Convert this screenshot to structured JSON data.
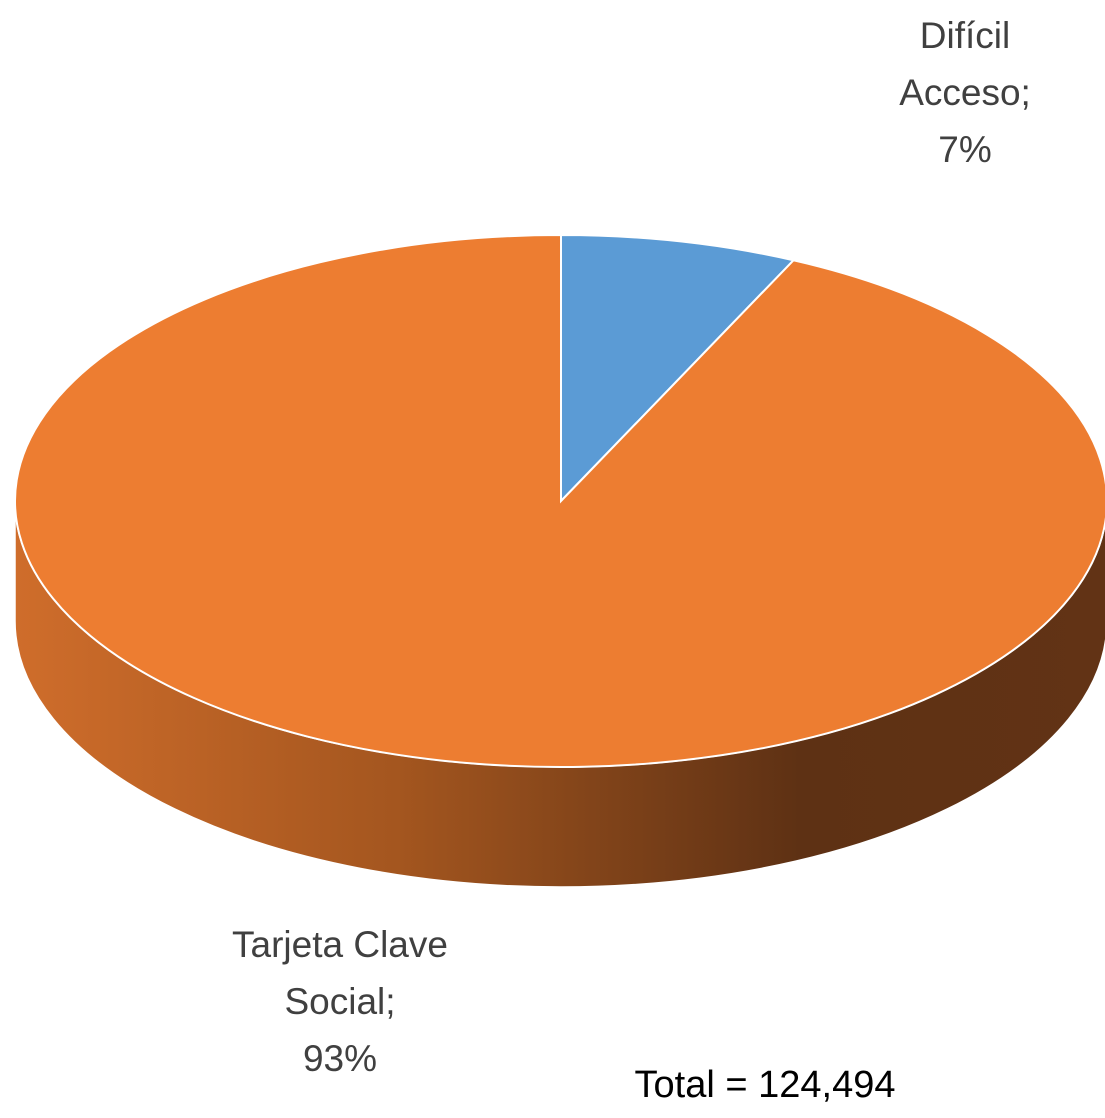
{
  "chart_data": {
    "type": "pie",
    "categories": [
      "Difícil Acceso",
      "Tarjeta Clave Social"
    ],
    "values": [
      7,
      93
    ],
    "value_labels": [
      "7%",
      "93%"
    ],
    "label_separator": ";",
    "colors": [
      "#5b9bd5",
      "#ed7d31"
    ],
    "annotation": "Total = 124,494"
  }
}
